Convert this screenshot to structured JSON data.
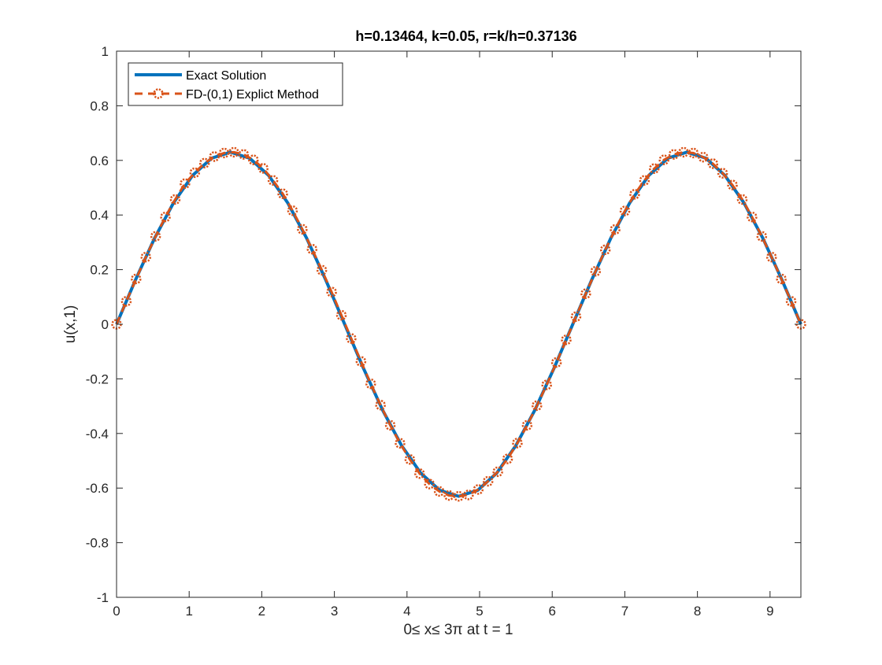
{
  "chart_data": {
    "type": "line",
    "title": "h=0.13464, k=0.05, r=k/h=0.37136",
    "xlabel": "0≤ x≤ 3π at t = 1",
    "ylabel": "u(x,1)",
    "xlim": [
      0,
      9.42478
    ],
    "ylim": [
      -1,
      1
    ],
    "x_ticks": [
      0,
      1,
      2,
      3,
      4,
      5,
      6,
      7,
      8,
      9
    ],
    "x_tick_labels": [
      "0",
      "1",
      "2",
      "3",
      "4",
      "5",
      "6",
      "7",
      "8",
      "9"
    ],
    "y_ticks": [
      -1,
      -0.8,
      -0.6,
      -0.4,
      -0.2,
      0,
      0.2,
      0.4,
      0.6,
      0.8,
      1
    ],
    "y_tick_labels": [
      "-1",
      "-0.8",
      "-0.6",
      "-0.4",
      "-0.2",
      "0",
      "0.2",
      "0.4",
      "0.6",
      "0.8",
      "1"
    ],
    "grid": false,
    "legend_position": "top-left",
    "series": [
      {
        "name": "Exact Solution",
        "color": "#0072BD",
        "style": "solid",
        "marker": "none",
        "x": [
          0,
          0.2618,
          0.5236,
          0.7854,
          1.0472,
          1.309,
          1.5708,
          1.8326,
          2.0944,
          2.3562,
          2.618,
          2.8798,
          3.1416,
          3.4034,
          3.6652,
          3.927,
          4.1888,
          4.4506,
          4.7124,
          4.9742,
          5.236,
          5.4978,
          5.7596,
          6.0214,
          6.2832,
          6.545,
          6.8068,
          7.0686,
          7.3304,
          7.5922,
          7.854,
          8.1158,
          8.3776,
          8.6394,
          8.9012,
          9.163,
          9.4248
        ],
        "y": [
          0,
          0.163,
          0.315,
          0.445,
          0.545,
          0.608,
          0.63,
          0.608,
          0.545,
          0.445,
          0.315,
          0.163,
          0,
          -0.163,
          -0.315,
          -0.445,
          -0.545,
          -0.608,
          -0.63,
          -0.608,
          -0.545,
          -0.445,
          -0.315,
          -0.163,
          0,
          0.163,
          0.315,
          0.445,
          0.545,
          0.608,
          0.63,
          0.608,
          0.545,
          0.445,
          0.315,
          0.163,
          0
        ]
      },
      {
        "name": "FD-(0,1) Explict Method",
        "color": "#D95319",
        "style": "dashed",
        "marker": "circle",
        "x": [
          0,
          0.1346,
          0.2693,
          0.4039,
          0.5386,
          0.6732,
          0.8078,
          0.9425,
          1.0771,
          1.2117,
          1.3464,
          1.481,
          1.6157,
          1.7503,
          1.8849,
          2.0196,
          2.1542,
          2.2889,
          2.4235,
          2.5581,
          2.6928,
          2.8274,
          2.962,
          3.0967,
          3.2313,
          3.366,
          3.5006,
          3.6352,
          3.7699,
          3.9045,
          4.0392,
          4.1738,
          4.3084,
          4.4431,
          4.5777,
          4.7124,
          4.847,
          4.9816,
          5.1163,
          5.2509,
          5.3855,
          5.5202,
          5.6548,
          5.7895,
          5.9241,
          6.0587,
          6.1934,
          6.328,
          6.4627,
          6.5973,
          6.7319,
          6.8666,
          7.0012,
          7.1359,
          7.2705,
          7.4051,
          7.5398,
          7.6744,
          7.809,
          7.9437,
          8.0783,
          8.213,
          8.3476,
          8.4822,
          8.6169,
          8.7515,
          8.8862,
          9.0208,
          9.1554,
          9.2901,
          9.4248
        ],
        "y": [
          0,
          0.084,
          0.166,
          0.246,
          0.322,
          0.393,
          0.457,
          0.515,
          0.555,
          0.59,
          0.614,
          0.627,
          0.63,
          0.622,
          0.602,
          0.571,
          0.527,
          0.478,
          0.416,
          0.348,
          0.275,
          0.198,
          0.118,
          0.033,
          -0.052,
          -0.136,
          -0.218,
          -0.296,
          -0.37,
          -0.436,
          -0.495,
          -0.547,
          -0.585,
          -0.612,
          -0.627,
          -0.63,
          -0.625,
          -0.605,
          -0.575,
          -0.54,
          -0.493,
          -0.435,
          -0.37,
          -0.298,
          -0.222,
          -0.14,
          -0.057,
          0.028,
          0.112,
          0.194,
          0.273,
          0.347,
          0.415,
          0.476,
          0.527,
          0.57,
          0.602,
          0.622,
          0.63,
          0.627,
          0.612,
          0.588,
          0.553,
          0.51,
          0.457,
          0.393,
          0.322,
          0.246,
          0.166,
          0.084,
          0
        ]
      }
    ]
  }
}
